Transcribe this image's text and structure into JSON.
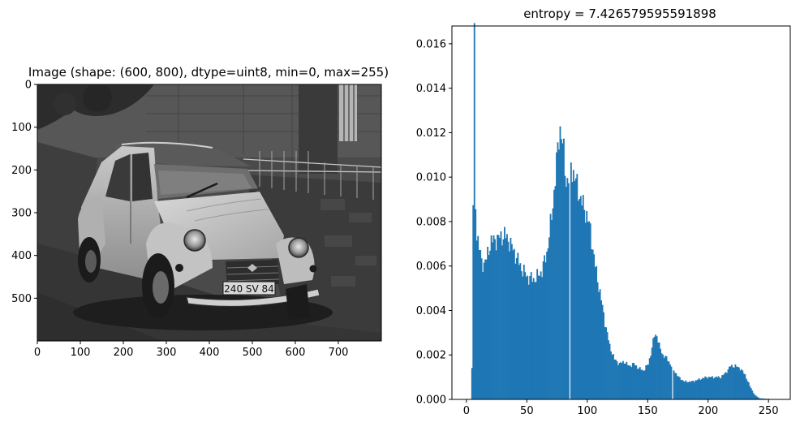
{
  "chart_data": [
    {
      "type": "image",
      "title": "Image (shape: (600, 800), dtype=uint8, min=0, max=255)",
      "xlim": [
        0,
        800
      ],
      "ylim": [
        600,
        0
      ],
      "xticks": [
        0,
        100,
        200,
        300,
        400,
        500,
        600,
        700
      ],
      "yticks": [
        0,
        100,
        200,
        300,
        400,
        500
      ],
      "plate_text": "240 SV 84"
    },
    {
      "type": "bar",
      "title": "entropy = 7.426579595591898",
      "color": "#1f77b4",
      "xlim": [
        -12,
        268
      ],
      "ylim": [
        0,
        0.0168
      ],
      "xticks": [
        0,
        50,
        100,
        150,
        200,
        250
      ],
      "yticks": [
        "0.000",
        "0.002",
        "0.004",
        "0.006",
        "0.008",
        "0.010",
        "0.012",
        "0.014",
        "0.016"
      ],
      "ytick_values": [
        0,
        0.002,
        0.004,
        0.006,
        0.008,
        0.01,
        0.012,
        0.014,
        0.016
      ],
      "profile": [
        [
          0,
          0
        ],
        [
          3,
          0
        ],
        [
          4,
          0.0014
        ],
        [
          5,
          0.0088
        ],
        [
          6,
          0.016
        ],
        [
          7,
          0.0088
        ],
        [
          8,
          0.0075
        ],
        [
          10,
          0.0068
        ],
        [
          12,
          0.0062
        ],
        [
          14,
          0.0061
        ],
        [
          16,
          0.0063
        ],
        [
          18,
          0.0068
        ],
        [
          20,
          0.0071
        ],
        [
          24,
          0.0072
        ],
        [
          28,
          0.0073
        ],
        [
          31,
          0.0074
        ],
        [
          35,
          0.0071
        ],
        [
          40,
          0.0065
        ],
        [
          45,
          0.0059
        ],
        [
          50,
          0.0055
        ],
        [
          55,
          0.0054
        ],
        [
          58,
          0.0055
        ],
        [
          62,
          0.0058
        ],
        [
          66,
          0.0066
        ],
        [
          70,
          0.0082
        ],
        [
          73,
          0.01
        ],
        [
          76,
          0.0118
        ],
        [
          77,
          0.0122
        ],
        [
          78,
          0.012
        ],
        [
          80,
          0.011
        ],
        [
          82,
          0.0098
        ],
        [
          84,
          0.01
        ],
        [
          86,
          0.0105
        ],
        [
          88,
          0.0102
        ],
        [
          90,
          0.0098
        ],
        [
          93,
          0.0092
        ],
        [
          96,
          0.0087
        ],
        [
          99,
          0.0083
        ],
        [
          102,
          0.0076
        ],
        [
          106,
          0.006
        ],
        [
          110,
          0.0048
        ],
        [
          114,
          0.0035
        ],
        [
          118,
          0.0024
        ],
        [
          122,
          0.0018
        ],
        [
          126,
          0.0016
        ],
        [
          130,
          0.0017
        ],
        [
          134,
          0.0015
        ],
        [
          138,
          0.0016
        ],
        [
          142,
          0.0014
        ],
        [
          146,
          0.0013
        ],
        [
          150,
          0.0016
        ],
        [
          153,
          0.0023
        ],
        [
          155,
          0.0029
        ],
        [
          157,
          0.0029
        ],
        [
          159,
          0.0024
        ],
        [
          162,
          0.002
        ],
        [
          166,
          0.0018
        ],
        [
          170,
          0.0014
        ],
        [
          175,
          0.001
        ],
        [
          180,
          0.0008
        ],
        [
          186,
          0.0008
        ],
        [
          192,
          0.0009
        ],
        [
          198,
          0.001
        ],
        [
          205,
          0.001
        ],
        [
          210,
          0.001
        ],
        [
          214,
          0.0012
        ],
        [
          218,
          0.0015
        ],
        [
          222,
          0.0015
        ],
        [
          226,
          0.0014
        ],
        [
          230,
          0.0011
        ],
        [
          234,
          0.0006
        ],
        [
          238,
          0.0002
        ],
        [
          242,
          5e-05
        ],
        [
          250,
          2e-05
        ],
        [
          255,
          0.0
        ]
      ],
      "gaps": [
        85,
        170
      ]
    }
  ]
}
